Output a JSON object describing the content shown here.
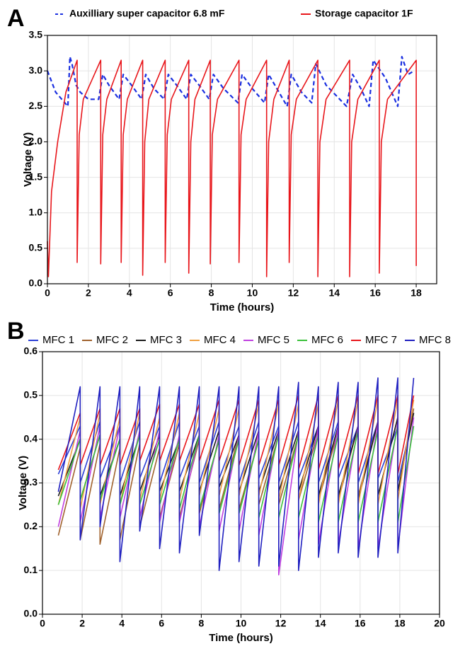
{
  "chart_data": [
    {
      "type": "line",
      "panel_label": "A",
      "xlabel": "Time (hours)",
      "ylabel": "Voltage (V)",
      "grid": true,
      "xlim": [
        0,
        19
      ],
      "xticks": [
        0,
        2,
        4,
        6,
        8,
        10,
        12,
        14,
        16,
        18
      ],
      "ylim": [
        0,
        3.5
      ],
      "yticks": [
        {
          "value": 0,
          "label": "0.0"
        },
        {
          "value": 0.5,
          "label": "0.5"
        },
        {
          "value": 1,
          "label": "1.0"
        },
        {
          "value": 1.5,
          "label": "1.5"
        },
        {
          "value": 2,
          "label": "2.0"
        },
        {
          "value": 2.5,
          "label": "2.5"
        },
        {
          "value": 3,
          "label": "3.0"
        },
        {
          "value": 3.5,
          "label": "3.5"
        }
      ],
      "series": [
        {
          "name": "Auxilliary super capacitor 6.8 mF",
          "color": "#1a2fe0",
          "dashed": true,
          "x": [
            0,
            0.4,
            1.0,
            1.1,
            1.2,
            1.4,
            1.6,
            2.0,
            2.5,
            2.7,
            3.0,
            3.5,
            3.7,
            4.1,
            4.6,
            4.8,
            5.2,
            5.7,
            5.9,
            6.3,
            6.8,
            7.0,
            7.4,
            7.9,
            8.1,
            8.6,
            9.3,
            9.5,
            10.0,
            10.6,
            10.8,
            11.2,
            11.7,
            11.9,
            12.4,
            12.9,
            13.1,
            13.6,
            14.6,
            14.9,
            15.3,
            15.7,
            15.9,
            16.5,
            17.1,
            17.3,
            17.6,
            17.9
          ],
          "values": [
            3.0,
            2.7,
            2.5,
            3.2,
            3.1,
            2.8,
            2.7,
            2.6,
            2.6,
            2.95,
            2.8,
            2.6,
            2.95,
            2.8,
            2.6,
            2.95,
            2.75,
            2.6,
            2.95,
            2.8,
            2.6,
            2.95,
            2.8,
            2.6,
            2.95,
            2.75,
            2.55,
            2.95,
            2.75,
            2.55,
            2.95,
            2.75,
            2.5,
            2.95,
            2.7,
            2.55,
            3.1,
            2.8,
            2.5,
            2.95,
            2.75,
            2.5,
            3.15,
            2.9,
            2.5,
            3.2,
            2.95,
            3.0
          ]
        },
        {
          "name": "Storage capacitor 1F",
          "color": "#e8161b",
          "dashed": false,
          "x": [
            0,
            0.05,
            0.2,
            0.5,
            0.9,
            1.45,
            1.45,
            1.55,
            1.75,
            2.6,
            2.6,
            2.7,
            2.9,
            3.6,
            3.6,
            3.7,
            3.9,
            4.65,
            4.65,
            4.75,
            4.95,
            5.75,
            5.75,
            5.85,
            6.05,
            6.9,
            6.9,
            7.0,
            7.2,
            7.95,
            7.95,
            8.05,
            8.3,
            9.35,
            9.35,
            9.45,
            9.7,
            10.7,
            10.7,
            10.8,
            11.05,
            11.8,
            11.8,
            11.9,
            12.15,
            13.2,
            13.2,
            13.3,
            13.6,
            14.75,
            14.75,
            14.85,
            15.15,
            16.2,
            16.2,
            16.3,
            16.6,
            18.0,
            18.0
          ],
          "values": [
            0.6,
            0.1,
            1.3,
            2.0,
            2.7,
            3.15,
            0.3,
            2.1,
            2.6,
            3.15,
            0.28,
            2.1,
            2.6,
            3.15,
            0.3,
            2.1,
            2.6,
            3.15,
            0.12,
            2.0,
            2.6,
            3.15,
            0.3,
            2.1,
            2.6,
            3.15,
            0.15,
            2.0,
            2.6,
            3.15,
            0.28,
            2.1,
            2.6,
            3.15,
            0.3,
            2.1,
            2.6,
            3.15,
            0.1,
            2.0,
            2.6,
            3.15,
            0.3,
            2.1,
            2.6,
            3.15,
            0.1,
            2.0,
            2.6,
            3.15,
            0.1,
            2.0,
            2.6,
            3.15,
            0.15,
            2.0,
            2.6,
            3.15,
            0.25
          ]
        }
      ]
    },
    {
      "type": "line",
      "panel_label": "B",
      "xlabel": "Time (hours)",
      "ylabel": "Voltage (V)",
      "grid": true,
      "xlim": [
        0,
        20
      ],
      "xticks": [
        0,
        2,
        4,
        6,
        8,
        10,
        12,
        14,
        16,
        18,
        20
      ],
      "ylim": [
        0,
        0.6
      ],
      "yticks": [
        {
          "value": 0,
          "label": "0.0"
        },
        {
          "value": 0.1,
          "label": "0.1"
        },
        {
          "value": 0.2,
          "label": "0.2"
        },
        {
          "value": 0.3,
          "label": "0.3"
        },
        {
          "value": 0.4,
          "label": "0.4"
        },
        {
          "value": 0.5,
          "label": "0.5"
        },
        {
          "value": 0.6,
          "label": "0.6"
        }
      ],
      "x": [
        0.8,
        1.9,
        1.9,
        2.9,
        2.9,
        3.9,
        3.9,
        4.9,
        4.9,
        5.9,
        5.9,
        6.9,
        6.9,
        7.9,
        7.9,
        8.9,
        8.9,
        9.9,
        9.9,
        10.9,
        10.9,
        11.9,
        11.9,
        12.9,
        12.9,
        13.9,
        13.9,
        14.9,
        14.9,
        15.9,
        15.9,
        16.9,
        16.9,
        17.9,
        17.9,
        18.7
      ],
      "series": [
        {
          "name": "MFC 1",
          "color": "#2b3fd6",
          "values": [
            0.32,
            0.43,
            0.3,
            0.44,
            0.31,
            0.43,
            0.3,
            0.44,
            0.31,
            0.43,
            0.3,
            0.44,
            0.31,
            0.43,
            0.3,
            0.44,
            0.31,
            0.43,
            0.3,
            0.44,
            0.31,
            0.43,
            0.3,
            0.44,
            0.31,
            0.43,
            0.3,
            0.44,
            0.31,
            0.43,
            0.3,
            0.44,
            0.31,
            0.43,
            0.3,
            0.46
          ]
        },
        {
          "name": "MFC 2",
          "color": "#a0622d",
          "values": [
            0.18,
            0.38,
            0.17,
            0.39,
            0.16,
            0.38,
            0.17,
            0.39,
            0.2,
            0.38,
            0.22,
            0.39,
            0.22,
            0.4,
            0.23,
            0.4,
            0.24,
            0.41,
            0.24,
            0.4,
            0.25,
            0.41,
            0.25,
            0.41,
            0.26,
            0.42,
            0.26,
            0.42,
            0.26,
            0.43,
            0.27,
            0.44,
            0.27,
            0.45,
            0.28,
            0.47
          ]
        },
        {
          "name": "MFC 3",
          "color": "#1a1a1a",
          "values": [
            0.27,
            0.4,
            0.26,
            0.41,
            0.27,
            0.4,
            0.27,
            0.41,
            0.28,
            0.41,
            0.28,
            0.4,
            0.28,
            0.41,
            0.28,
            0.42,
            0.29,
            0.41,
            0.28,
            0.42,
            0.28,
            0.42,
            0.28,
            0.42,
            0.28,
            0.43,
            0.27,
            0.43,
            0.27,
            0.43,
            0.26,
            0.44,
            0.27,
            0.45,
            0.28,
            0.46
          ]
        },
        {
          "name": "MFC 4",
          "color": "#f0a040",
          "values": [
            0.25,
            0.45,
            0.24,
            0.46,
            0.25,
            0.45,
            0.25,
            0.46,
            0.26,
            0.45,
            0.26,
            0.46,
            0.26,
            0.46,
            0.27,
            0.47,
            0.27,
            0.47,
            0.27,
            0.48,
            0.27,
            0.48,
            0.26,
            0.48,
            0.26,
            0.48,
            0.25,
            0.49,
            0.25,
            0.49,
            0.25,
            0.49,
            0.25,
            0.49,
            0.26,
            0.49
          ]
        },
        {
          "name": "MFC 5",
          "color": "#c040e0",
          "values": [
            0.2,
            0.42,
            0.21,
            0.43,
            0.22,
            0.43,
            0.22,
            0.42,
            0.22,
            0.42,
            0.21,
            0.41,
            0.21,
            0.41,
            0.2,
            0.41,
            0.19,
            0.41,
            0.19,
            0.42,
            0.18,
            0.42,
            0.09,
            0.42,
            0.17,
            0.43,
            0.16,
            0.43,
            0.16,
            0.43,
            0.15,
            0.44,
            0.15,
            0.44,
            0.15,
            0.45
          ]
        },
        {
          "name": "MFC 6",
          "color": "#3ac13a",
          "values": [
            0.25,
            0.4,
            0.26,
            0.41,
            0.26,
            0.4,
            0.25,
            0.41,
            0.25,
            0.4,
            0.25,
            0.4,
            0.24,
            0.41,
            0.24,
            0.4,
            0.23,
            0.4,
            0.23,
            0.4,
            0.22,
            0.41,
            0.22,
            0.41,
            0.22,
            0.41,
            0.21,
            0.41,
            0.21,
            0.42,
            0.21,
            0.42,
            0.21,
            0.43,
            0.21,
            0.43
          ]
        },
        {
          "name": "MFC 7",
          "color": "#e8161b",
          "values": [
            0.33,
            0.46,
            0.34,
            0.47,
            0.34,
            0.47,
            0.34,
            0.47,
            0.35,
            0.48,
            0.35,
            0.48,
            0.35,
            0.48,
            0.35,
            0.49,
            0.35,
            0.49,
            0.34,
            0.49,
            0.34,
            0.49,
            0.34,
            0.5,
            0.33,
            0.5,
            0.33,
            0.5,
            0.33,
            0.5,
            0.32,
            0.5,
            0.32,
            0.5,
            0.32,
            0.5
          ]
        },
        {
          "name": "MFC 8",
          "color": "#2020c0",
          "values": [
            0.28,
            0.52,
            0.17,
            0.52,
            0.2,
            0.52,
            0.12,
            0.52,
            0.19,
            0.52,
            0.15,
            0.52,
            0.14,
            0.52,
            0.18,
            0.52,
            0.1,
            0.52,
            0.12,
            0.52,
            0.11,
            0.52,
            0.11,
            0.53,
            0.1,
            0.52,
            0.13,
            0.53,
            0.14,
            0.53,
            0.13,
            0.54,
            0.13,
            0.54,
            0.14,
            0.54
          ]
        }
      ]
    }
  ]
}
